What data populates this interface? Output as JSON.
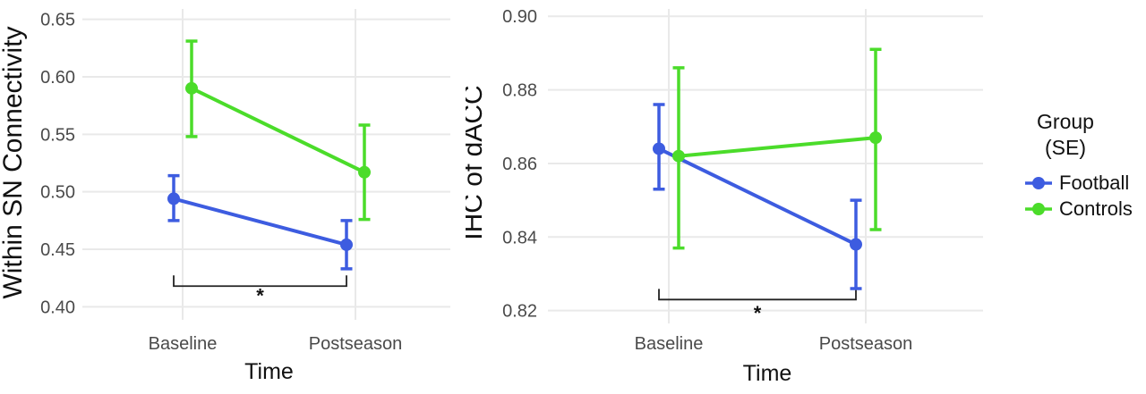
{
  "chart_data": [
    {
      "type": "line",
      "panel": "left",
      "title": "",
      "ylabel": "Within SN Connectivity",
      "xlabel": "Time",
      "categories": [
        "Baseline",
        "Postseason"
      ],
      "yticks": [
        0.4,
        0.45,
        0.5,
        0.55,
        0.6,
        0.65
      ],
      "ylim": [
        0.391,
        0.659
      ],
      "grid": true,
      "legend_position": "none",
      "series": [
        {
          "name": "Football",
          "color": "#3D5CE0",
          "values": [
            0.494,
            0.454
          ],
          "se_low": [
            0.475,
            0.433
          ],
          "se_high": [
            0.514,
            0.475
          ]
        },
        {
          "name": "Controls",
          "color": "#4BDC2A",
          "values": [
            0.59,
            0.517
          ],
          "se_low": [
            0.548,
            0.476
          ],
          "se_high": [
            0.631,
            0.558
          ]
        }
      ],
      "significance": {
        "between": [
          "Baseline",
          "Postseason"
        ],
        "label": "*",
        "bar_y": 0.418,
        "tick_up": 0.0093,
        "label_y": 0.404
      }
    },
    {
      "type": "line",
      "panel": "right",
      "title": "",
      "ylabel": "IHC of dACC",
      "xlabel": "Time",
      "categories": [
        "Baseline",
        "Postseason"
      ],
      "yticks": [
        0.82,
        0.84,
        0.86,
        0.88,
        0.9
      ],
      "ylim": [
        0.817,
        0.902
      ],
      "grid": true,
      "legend_position": "right",
      "series": [
        {
          "name": "Football",
          "color": "#3D5CE0",
          "values": [
            0.864,
            0.838
          ],
          "se_low": [
            0.853,
            0.826
          ],
          "se_high": [
            0.876,
            0.85
          ]
        },
        {
          "name": "Controls",
          "color": "#4BDC2A",
          "values": [
            0.862,
            0.867
          ],
          "se_low": [
            0.837,
            0.842
          ],
          "se_high": [
            0.886,
            0.891
          ]
        }
      ],
      "significance": {
        "between": [
          "Baseline",
          "Postseason"
        ],
        "label": "*",
        "bar_y": 0.823,
        "tick_up": 0.0029,
        "label_y": 0.8175
      }
    }
  ],
  "legend": {
    "title_lines": [
      "Group",
      "(SE)"
    ],
    "items": [
      {
        "label": "Football",
        "color": "#3D5CE0"
      },
      {
        "label": "Controls",
        "color": "#4BDC2A"
      }
    ]
  },
  "style": {
    "background": "#ffffff",
    "grid_color": "#e9e9e9",
    "tick_label_color": "#4a4a4a",
    "axis_title_color": "#111111",
    "bracket_color": "#222222"
  }
}
